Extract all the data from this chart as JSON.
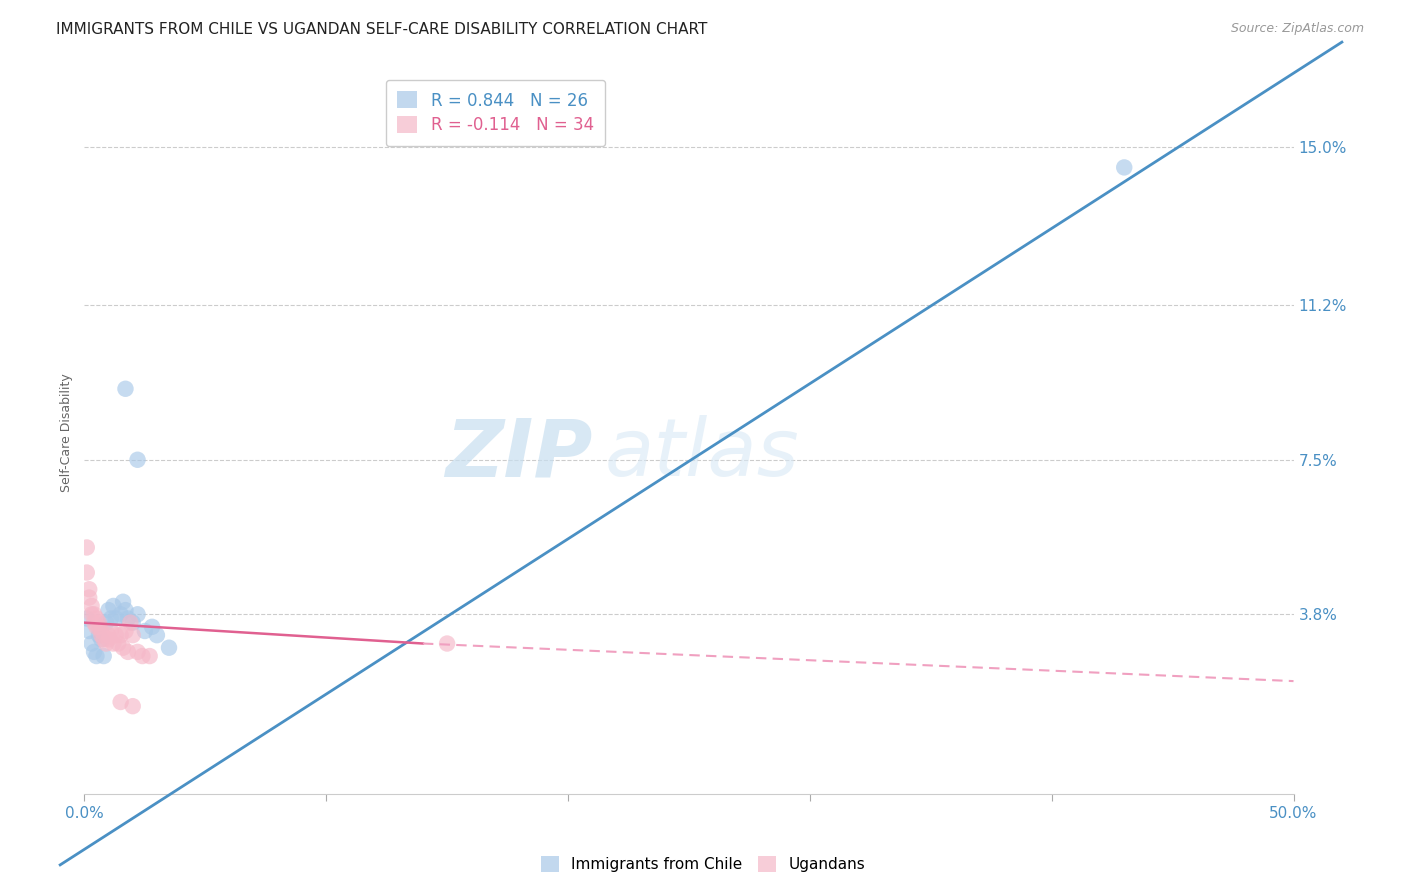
{
  "title": "IMMIGRANTS FROM CHILE VS UGANDAN SELF-CARE DISABILITY CORRELATION CHART",
  "source": "Source: ZipAtlas.com",
  "ylabel": "Self-Care Disability",
  "xlim": [
    0.0,
    0.5
  ],
  "ylim": [
    -0.005,
    0.168
  ],
  "xticks": [
    0.0,
    0.1,
    0.2,
    0.3,
    0.4,
    0.5
  ],
  "xticklabels": [
    "0.0%",
    "",
    "",
    "",
    "",
    "50.0%"
  ],
  "ytick_positions": [
    0.038,
    0.075,
    0.112,
    0.15
  ],
  "ytick_labels": [
    "3.8%",
    "7.5%",
    "11.2%",
    "15.0%"
  ],
  "grid_yticks": [
    0.038,
    0.075,
    0.112,
    0.15
  ],
  "blue_color": "#a8c8e8",
  "pink_color": "#f5b8c8",
  "blue_line_color": "#4a90c4",
  "pink_line_color": "#e06090",
  "pink_line_dashed_color": "#f0a0c0",
  "R_blue": 0.844,
  "N_blue": 26,
  "R_pink": -0.114,
  "N_pink": 34,
  "legend_label_blue": "Immigrants from Chile",
  "legend_label_pink": "Ugandans",
  "blue_scatter": [
    [
      0.001,
      0.037
    ],
    [
      0.002,
      0.034
    ],
    [
      0.003,
      0.031
    ],
    [
      0.004,
      0.029
    ],
    [
      0.005,
      0.028
    ],
    [
      0.006,
      0.033
    ],
    [
      0.007,
      0.032
    ],
    [
      0.008,
      0.028
    ],
    [
      0.009,
      0.036
    ],
    [
      0.01,
      0.039
    ],
    [
      0.011,
      0.037
    ],
    [
      0.012,
      0.04
    ],
    [
      0.013,
      0.037
    ],
    [
      0.015,
      0.038
    ],
    [
      0.016,
      0.041
    ],
    [
      0.017,
      0.039
    ],
    [
      0.018,
      0.037
    ],
    [
      0.02,
      0.036
    ],
    [
      0.022,
      0.038
    ],
    [
      0.025,
      0.034
    ],
    [
      0.028,
      0.035
    ],
    [
      0.03,
      0.033
    ],
    [
      0.035,
      0.03
    ],
    [
      0.017,
      0.092
    ],
    [
      0.022,
      0.075
    ],
    [
      0.43,
      0.145
    ]
  ],
  "pink_scatter": [
    [
      0.001,
      0.054
    ],
    [
      0.001,
      0.048
    ],
    [
      0.002,
      0.044
    ],
    [
      0.002,
      0.042
    ],
    [
      0.003,
      0.04
    ],
    [
      0.003,
      0.038
    ],
    [
      0.004,
      0.038
    ],
    [
      0.004,
      0.036
    ],
    [
      0.005,
      0.037
    ],
    [
      0.005,
      0.035
    ],
    [
      0.006,
      0.036
    ],
    [
      0.006,
      0.035
    ],
    [
      0.007,
      0.034
    ],
    [
      0.007,
      0.033
    ],
    [
      0.008,
      0.032
    ],
    [
      0.009,
      0.031
    ],
    [
      0.01,
      0.033
    ],
    [
      0.01,
      0.032
    ],
    [
      0.011,
      0.034
    ],
    [
      0.012,
      0.031
    ],
    [
      0.013,
      0.033
    ],
    [
      0.014,
      0.031
    ],
    [
      0.015,
      0.033
    ],
    [
      0.016,
      0.03
    ],
    [
      0.018,
      0.029
    ],
    [
      0.02,
      0.033
    ],
    [
      0.022,
      0.029
    ],
    [
      0.024,
      0.028
    ],
    [
      0.027,
      0.028
    ],
    [
      0.017,
      0.034
    ],
    [
      0.019,
      0.036
    ],
    [
      0.15,
      0.031
    ],
    [
      0.015,
      0.017
    ],
    [
      0.02,
      0.016
    ]
  ],
  "blue_trendline": [
    [
      -0.01,
      -0.022
    ],
    [
      0.52,
      0.175
    ]
  ],
  "pink_trendline_solid": [
    [
      0.0,
      0.036
    ],
    [
      0.14,
      0.031
    ]
  ],
  "pink_trendline_dashed": [
    [
      0.14,
      0.031
    ],
    [
      0.5,
      0.022
    ]
  ],
  "watermark_zip": "ZIP",
  "watermark_atlas": "atlas",
  "background_color": "#ffffff",
  "title_fontsize": 11,
  "axis_tick_color": "#4a90c4",
  "axis_tick_fontsize": 11
}
